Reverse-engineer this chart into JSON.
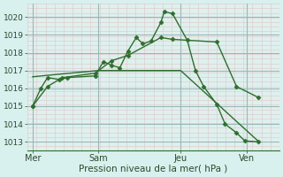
{
  "background_color": "#d8f0ee",
  "plot_bg_color": "#dff0ee",
  "grid_color_major": "#c8dede",
  "grid_color_minor": "#e8c8c8",
  "line_color": "#2d6e2d",
  "xlabel": "Pression niveau de la mer( hPa )",
  "ylim": [
    1012.5,
    1020.75
  ],
  "xlim": [
    -0.15,
    7.5
  ],
  "yticks": [
    1013,
    1014,
    1015,
    1016,
    1017,
    1018,
    1019,
    1020
  ],
  "xtick_labels": [
    "Mer",
    "Sam",
    "Jeu",
    "Ven"
  ],
  "xtick_positions": [
    0.0,
    2.0,
    4.5,
    6.5
  ],
  "vline_positions": [
    0.0,
    2.0,
    4.5,
    6.5
  ],
  "series": [
    {
      "x": [
        0.0,
        0.25,
        0.45,
        0.8,
        1.05,
        1.9,
        2.15,
        2.4,
        2.65,
        2.9,
        3.15,
        3.35,
        3.6,
        3.9,
        4.0,
        4.25,
        4.7,
        4.95,
        5.2,
        5.6,
        5.85,
        6.2,
        6.45,
        6.85
      ],
      "y": [
        1015.0,
        1016.0,
        1016.6,
        1016.5,
        1016.6,
        1016.7,
        1017.5,
        1017.3,
        1017.15,
        1018.1,
        1018.85,
        1018.5,
        1018.65,
        1019.7,
        1020.3,
        1020.2,
        1018.7,
        1017.0,
        1016.1,
        1015.1,
        1014.0,
        1013.5,
        1013.05,
        1013.0
      ],
      "marker": "D",
      "markersize": 2.5,
      "linewidth": 1.0
    },
    {
      "x": [
        0.0,
        0.45,
        0.9,
        1.9,
        2.4,
        2.9,
        3.9,
        4.25,
        5.6,
        6.2,
        6.85
      ],
      "y": [
        1015.0,
        1016.1,
        1016.6,
        1016.85,
        1017.55,
        1017.85,
        1018.85,
        1018.75,
        1018.6,
        1016.1,
        1015.5
      ],
      "marker": "D",
      "markersize": 2.5,
      "linewidth": 1.0
    },
    {
      "x": [
        0.0,
        2.0,
        4.5,
        6.85
      ],
      "y": [
        1016.65,
        1017.0,
        1017.0,
        1013.05
      ],
      "marker": null,
      "markersize": 0,
      "linewidth": 1.0
    }
  ],
  "ylabel_fontsize": 6.5,
  "xlabel_fontsize": 7.5,
  "xtick_fontsize": 7.0,
  "title_fontsize": 7.5
}
